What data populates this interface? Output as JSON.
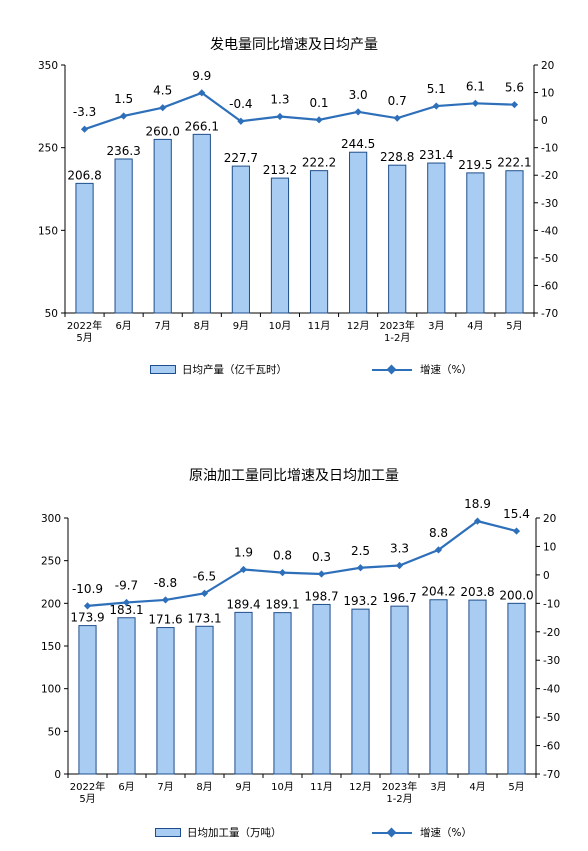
{
  "charts": [
    {
      "title": "发电量同比增速及日均产量",
      "legend": {
        "bar_label": "日均产量（亿千瓦时）",
        "line_label": "增速（%）"
      },
      "colors": {
        "bar_fill": "#a9cdf2",
        "bar_stroke": "#1f4e8c",
        "line": "#2e6fba"
      }
    },
    {
      "title": "原油加工量同比增速及日均加工量",
      "legend": {
        "bar_label": "日均加工量（万吨）",
        "line_label": "增速（%）"
      },
      "colors": {
        "bar_fill": "#a9cdf2",
        "bar_stroke": "#1f4e8c",
        "line": "#2e6fba"
      }
    }
  ],
  "chart_data": [
    {
      "type": "bar+line",
      "title": "发电量同比增速及日均产量",
      "categories": [
        [
          "2022年",
          "5月"
        ],
        [
          "6月"
        ],
        [
          "7月"
        ],
        [
          "8月"
        ],
        [
          "9月"
        ],
        [
          "10月"
        ],
        [
          "11月"
        ],
        [
          "12月"
        ],
        [
          "2023年",
          "1-2月"
        ],
        [
          "3月"
        ],
        [
          "4月"
        ],
        [
          "5月"
        ]
      ],
      "series": [
        {
          "name": "日均产量（亿千瓦时）",
          "kind": "bar",
          "axis": "left",
          "values": [
            206.8,
            236.3,
            260.0,
            266.1,
            227.7,
            213.2,
            222.2,
            244.5,
            228.8,
            231.4,
            219.5,
            222.1
          ],
          "labels": [
            "206.8",
            "236.3",
            "260.0",
            "266.1",
            "227.7",
            "213.2",
            "222.2",
            "244.5",
            "228.8",
            "231.4",
            "219.5",
            "222.1"
          ]
        },
        {
          "name": "增速（%）",
          "kind": "line",
          "axis": "right",
          "values": [
            -3.3,
            1.5,
            4.5,
            9.9,
            -0.4,
            1.3,
            0.1,
            3.0,
            0.7,
            5.1,
            6.1,
            5.6
          ],
          "labels": [
            "-3.3",
            "1.5",
            "4.5",
            "9.9",
            "-0.4",
            "1.3",
            "0.1",
            "3.0",
            "0.7",
            "5.1",
            "6.1",
            "5.6"
          ]
        }
      ],
      "y_left": {
        "range": [
          50,
          350
        ],
        "ticks": [
          "50",
          "150",
          "250",
          "350"
        ]
      },
      "y_right": {
        "range": [
          -70,
          20
        ],
        "ticks": [
          "20",
          "10",
          "0",
          "-10",
          "-20",
          "-30",
          "-40",
          "-50",
          "-60",
          "-70"
        ]
      },
      "grid": false,
      "legend_position": "bottom"
    },
    {
      "type": "bar+line",
      "title": "原油加工量同比增速及日均加工量",
      "categories": [
        [
          "2022年",
          "5月"
        ],
        [
          "6月"
        ],
        [
          "7月"
        ],
        [
          "8月"
        ],
        [
          "9月"
        ],
        [
          "10月"
        ],
        [
          "11月"
        ],
        [
          "12月"
        ],
        [
          "2023年",
          "1-2月"
        ],
        [
          "3月"
        ],
        [
          "4月"
        ],
        [
          "5月"
        ]
      ],
      "series": [
        {
          "name": "日均加工量（万吨）",
          "kind": "bar",
          "axis": "left",
          "values": [
            173.9,
            183.1,
            171.6,
            173.1,
            189.4,
            189.1,
            198.7,
            193.2,
            196.7,
            204.2,
            203.8,
            200.0
          ],
          "labels": [
            "173.9",
            "183.1",
            "171.6",
            "173.1",
            "189.4",
            "189.1",
            "198.7",
            "193.2",
            "196.7",
            "204.2",
            "203.8",
            "200.0"
          ]
        },
        {
          "name": "增速（%）",
          "kind": "line",
          "axis": "right",
          "values": [
            -10.9,
            -9.7,
            -8.8,
            -6.5,
            1.9,
            0.8,
            0.3,
            2.5,
            3.3,
            8.8,
            18.9,
            15.4
          ],
          "labels": [
            "-10.9",
            "-9.7",
            "-8.8",
            "-6.5",
            "1.9",
            "0.8",
            "0.3",
            "2.5",
            "3.3",
            "8.8",
            "18.9",
            "15.4"
          ]
        }
      ],
      "y_left": {
        "range": [
          0,
          300
        ],
        "ticks": [
          "0",
          "50",
          "100",
          "150",
          "200",
          "250",
          "300"
        ]
      },
      "y_right": {
        "range": [
          -70,
          20
        ],
        "ticks": [
          "20",
          "10",
          "0",
          "-10",
          "-20",
          "-30",
          "-40",
          "-50",
          "-60",
          "-70"
        ]
      },
      "grid": false,
      "legend_position": "bottom"
    }
  ]
}
